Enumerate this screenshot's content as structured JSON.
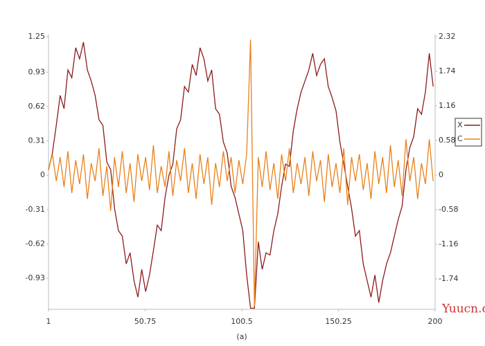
{
  "chart_data": {
    "type": "line",
    "caption": "(a)",
    "watermark": "Yuucn.com",
    "x": [
      1,
      3,
      5,
      7,
      9,
      11,
      13,
      15,
      17,
      19,
      21,
      23,
      25,
      27,
      29,
      31,
      33,
      35,
      37,
      39,
      41,
      43,
      45,
      47,
      49,
      51,
      53,
      55,
      57,
      59,
      61,
      63,
      65,
      67,
      69,
      71,
      73,
      75,
      77,
      79,
      81,
      83,
      85,
      87,
      89,
      91,
      93,
      95,
      97,
      99,
      101,
      103,
      105,
      107,
      109,
      111,
      113,
      115,
      117,
      119,
      121,
      123,
      125,
      127,
      129,
      131,
      133,
      135,
      137,
      139,
      141,
      143,
      145,
      147,
      149,
      151,
      153,
      155,
      157,
      159,
      161,
      163,
      165,
      167,
      169,
      171,
      173,
      175,
      177,
      179,
      181,
      183,
      185,
      187,
      189,
      191,
      193,
      195,
      197,
      199
    ],
    "series": [
      {
        "name": "X",
        "color": "#8b1a1a",
        "values": [
          0.05,
          0.2,
          0.45,
          0.72,
          0.6,
          0.95,
          0.88,
          1.15,
          1.05,
          1.2,
          0.95,
          0.85,
          0.72,
          0.5,
          0.45,
          0.12,
          0.05,
          -0.3,
          -0.5,
          -0.55,
          -0.8,
          -0.7,
          -0.95,
          -1.1,
          -0.85,
          -1.05,
          -0.9,
          -0.68,
          -0.45,
          -0.5,
          -0.2,
          0.0,
          0.1,
          0.42,
          0.5,
          0.8,
          0.75,
          1.0,
          0.9,
          1.15,
          1.05,
          0.85,
          0.95,
          0.6,
          0.55,
          0.3,
          0.2,
          -0.1,
          -0.2,
          -0.35,
          -0.5,
          -0.9,
          -1.2,
          -1.2,
          -0.6,
          -0.85,
          -0.7,
          -0.72,
          -0.5,
          -0.35,
          -0.1,
          0.1,
          0.08,
          0.4,
          0.6,
          0.75,
          0.85,
          0.95,
          1.1,
          0.9,
          1.0,
          1.05,
          0.8,
          0.7,
          0.58,
          0.3,
          0.1,
          -0.1,
          -0.3,
          -0.55,
          -0.5,
          -0.8,
          -0.95,
          -1.1,
          -0.9,
          -1.15,
          -0.95,
          -0.8,
          -0.7,
          -0.55,
          -0.4,
          -0.28,
          0.05,
          0.25,
          0.35,
          0.6,
          0.55,
          0.75,
          1.1,
          0.8
        ]
      },
      {
        "name": "C",
        "color": "#e8801a",
        "axis": "y2",
        "values": [
          0.1,
          0.35,
          -0.1,
          0.3,
          -0.2,
          0.4,
          -0.3,
          0.25,
          -0.15,
          0.35,
          -0.4,
          0.2,
          -0.1,
          0.45,
          -0.35,
          0.15,
          -0.6,
          0.3,
          -0.2,
          0.4,
          -0.3,
          0.2,
          -0.45,
          0.35,
          -0.1,
          0.3,
          -0.25,
          0.5,
          -0.3,
          0.15,
          -0.2,
          0.4,
          -0.35,
          0.25,
          -0.1,
          0.45,
          -0.3,
          0.2,
          -0.4,
          0.35,
          -0.15,
          0.3,
          -0.5,
          0.2,
          -0.2,
          0.4,
          -0.1,
          0.3,
          -0.3,
          0.25,
          -0.15,
          0.35,
          2.27,
          -2.2,
          0.3,
          -0.2,
          0.4,
          -0.25,
          0.2,
          -0.4,
          0.35,
          -0.1,
          0.45,
          -0.3,
          0.2,
          -0.15,
          0.3,
          -0.35,
          0.4,
          -0.1,
          0.25,
          -0.45,
          0.35,
          -0.2,
          0.2,
          -0.3,
          0.45,
          -0.5,
          0.3,
          -0.1,
          0.35,
          -0.25,
          0.2,
          -0.4,
          0.4,
          -0.15,
          0.3,
          -0.3,
          0.5,
          -0.2,
          0.25,
          -0.35,
          0.6,
          -0.1,
          0.3,
          -0.4,
          0.2,
          -0.15,
          0.6,
          -0.1
        ]
      }
    ],
    "xlim": [
      1,
      200
    ],
    "xticks": [
      1,
      50.75,
      100.5,
      150.25,
      200
    ],
    "ylim": [
      -1.21,
      1.25
    ],
    "yticks": [
      1.25,
      0.93,
      0.62,
      0.31,
      0,
      -0.31,
      -0.62,
      -0.93
    ],
    "y2lim": [
      -2.25,
      2.32
    ],
    "y2ticks": [
      2.32,
      1.74,
      1.16,
      0.58,
      0,
      -0.58,
      -1.16,
      -1.74
    ]
  }
}
